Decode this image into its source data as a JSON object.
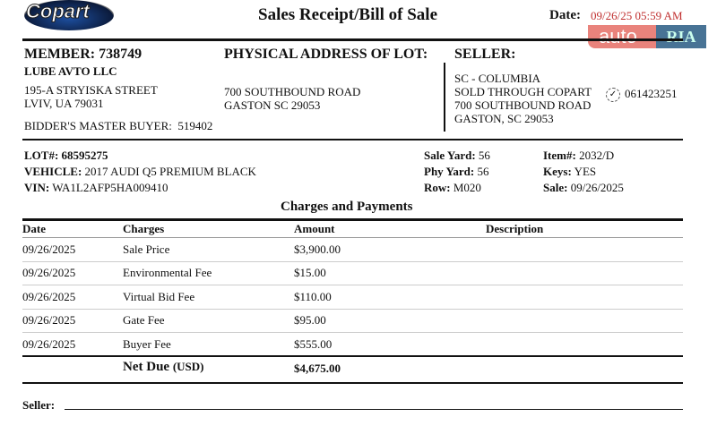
{
  "header": {
    "logo": "Copart",
    "title": "Sales Receipt/Bill of Sale",
    "date_label": "Date:",
    "date_value": "09/26/25 05:59 AM",
    "watermark_auto": "auto",
    "watermark_ria": "RIA"
  },
  "member": {
    "label": "MEMBER:",
    "number": "738749",
    "company": "LUBE AVTO LLC",
    "address1": "195-A STRYISKA STREET",
    "address2": "LVIV, UA 79031",
    "buyer_label": "BIDDER'S MASTER BUYER:",
    "buyer_value": "519402"
  },
  "lot_address": {
    "label": "PHYSICAL ADDRESS OF LOT:",
    "line1": "700 SOUTHBOUND ROAD",
    "line2": "GASTON SC 29053"
  },
  "seller": {
    "label": "SELLER:",
    "line1": "SC - COLUMBIA",
    "line2": "SOLD THROUGH COPART",
    "line3": "700 SOUTHBOUND ROAD",
    "line4": "GASTON, SC 29053",
    "id": "061423251"
  },
  "lot": {
    "lot_label": "LOT#:",
    "lot_value": "68595275",
    "vehicle_label": "VEHICLE:",
    "vehicle_value": "2017 AUDI Q5 PREMIUM BLACK",
    "vin_label": "VIN:",
    "vin_value": "WA1L2AFP5HA009410",
    "sale_yard_label": "Sale Yard:",
    "sale_yard_value": "56",
    "phy_yard_label": "Phy Yard:",
    "phy_yard_value": "56",
    "row_label": "Row:",
    "row_value": "M020",
    "item_label": "Item#:",
    "item_value": "2032/D",
    "keys_label": "Keys:",
    "keys_value": "YES",
    "sale_label": "Sale:",
    "sale_value": "09/26/2025"
  },
  "charges": {
    "title": "Charges and Payments",
    "columns": [
      "Date",
      "Charges",
      "Amount",
      "Description"
    ],
    "rows": [
      [
        "09/26/2025",
        "Sale Price",
        "$3,900.00",
        ""
      ],
      [
        "09/26/2025",
        "Environmental Fee",
        "$15.00",
        ""
      ],
      [
        "09/26/2025",
        "Virtual Bid Fee",
        "$110.00",
        ""
      ],
      [
        "09/26/2025",
        "Gate Fee",
        "$95.00",
        ""
      ],
      [
        "09/26/2025",
        "Buyer Fee",
        "$555.00",
        ""
      ]
    ],
    "net_due_label": "Net Due",
    "net_due_currency": "(USD)",
    "net_due_value": "$4,675.00"
  },
  "footer": {
    "seller_label": "Seller:"
  }
}
